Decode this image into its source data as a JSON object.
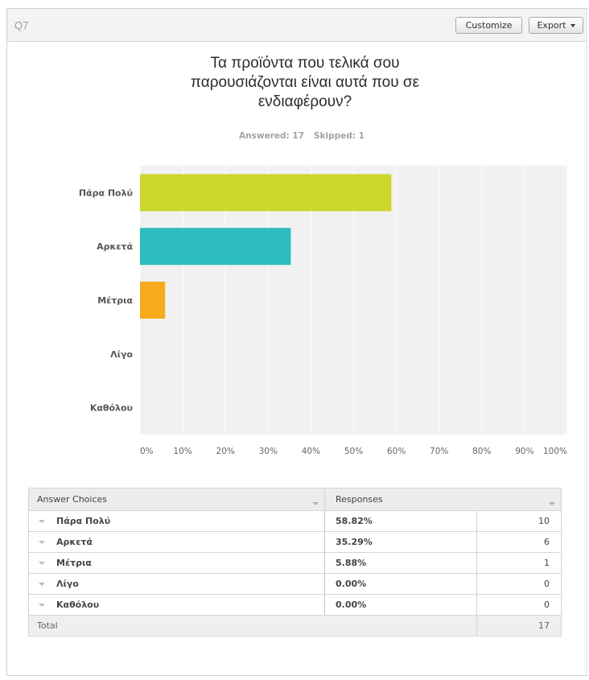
{
  "question_label": "Q7",
  "buttons": {
    "customize": "Customize",
    "export": "Export"
  },
  "title_lines": [
    "Τα προϊόντα που τελικά σου",
    "παρουσιάζονται είναι αυτά που σε",
    "ενδιαφέρουν?"
  ],
  "stats": {
    "answered": "Answered: 17",
    "skipped": "Skipped: 1"
  },
  "chart_data": {
    "type": "bar",
    "orientation": "horizontal",
    "categories": [
      "Πάρα Πολύ",
      "Αρκετά",
      "Μέτρια",
      "Λίγο",
      "Καθόλου"
    ],
    "values": [
      58.82,
      35.29,
      5.88,
      0,
      0
    ],
    "colors": [
      "#cdd62b",
      "#2cbcbd",
      "#f6ab1d",
      "#9b9b9b",
      "#9b9b9b"
    ],
    "xlim": [
      0,
      100
    ],
    "x_ticks": [
      "0%",
      "10%",
      "20%",
      "30%",
      "40%",
      "50%",
      "60%",
      "70%",
      "80%",
      "90%",
      "100%"
    ],
    "grid": true,
    "background": "#f1f1f1"
  },
  "table": {
    "headers": {
      "choices": "Answer Choices",
      "responses": "Responses"
    },
    "rows": [
      {
        "choice": "Πάρα Πολύ",
        "percent": "58.82%",
        "count": "10"
      },
      {
        "choice": "Αρκετά",
        "percent": "35.29%",
        "count": "6"
      },
      {
        "choice": "Μέτρια",
        "percent": "5.88%",
        "count": "1"
      },
      {
        "choice": "Λίγο",
        "percent": "0.00%",
        "count": "0"
      },
      {
        "choice": "Καθόλου",
        "percent": "0.00%",
        "count": "0"
      }
    ],
    "total_label": "Total",
    "total_count": "17"
  }
}
